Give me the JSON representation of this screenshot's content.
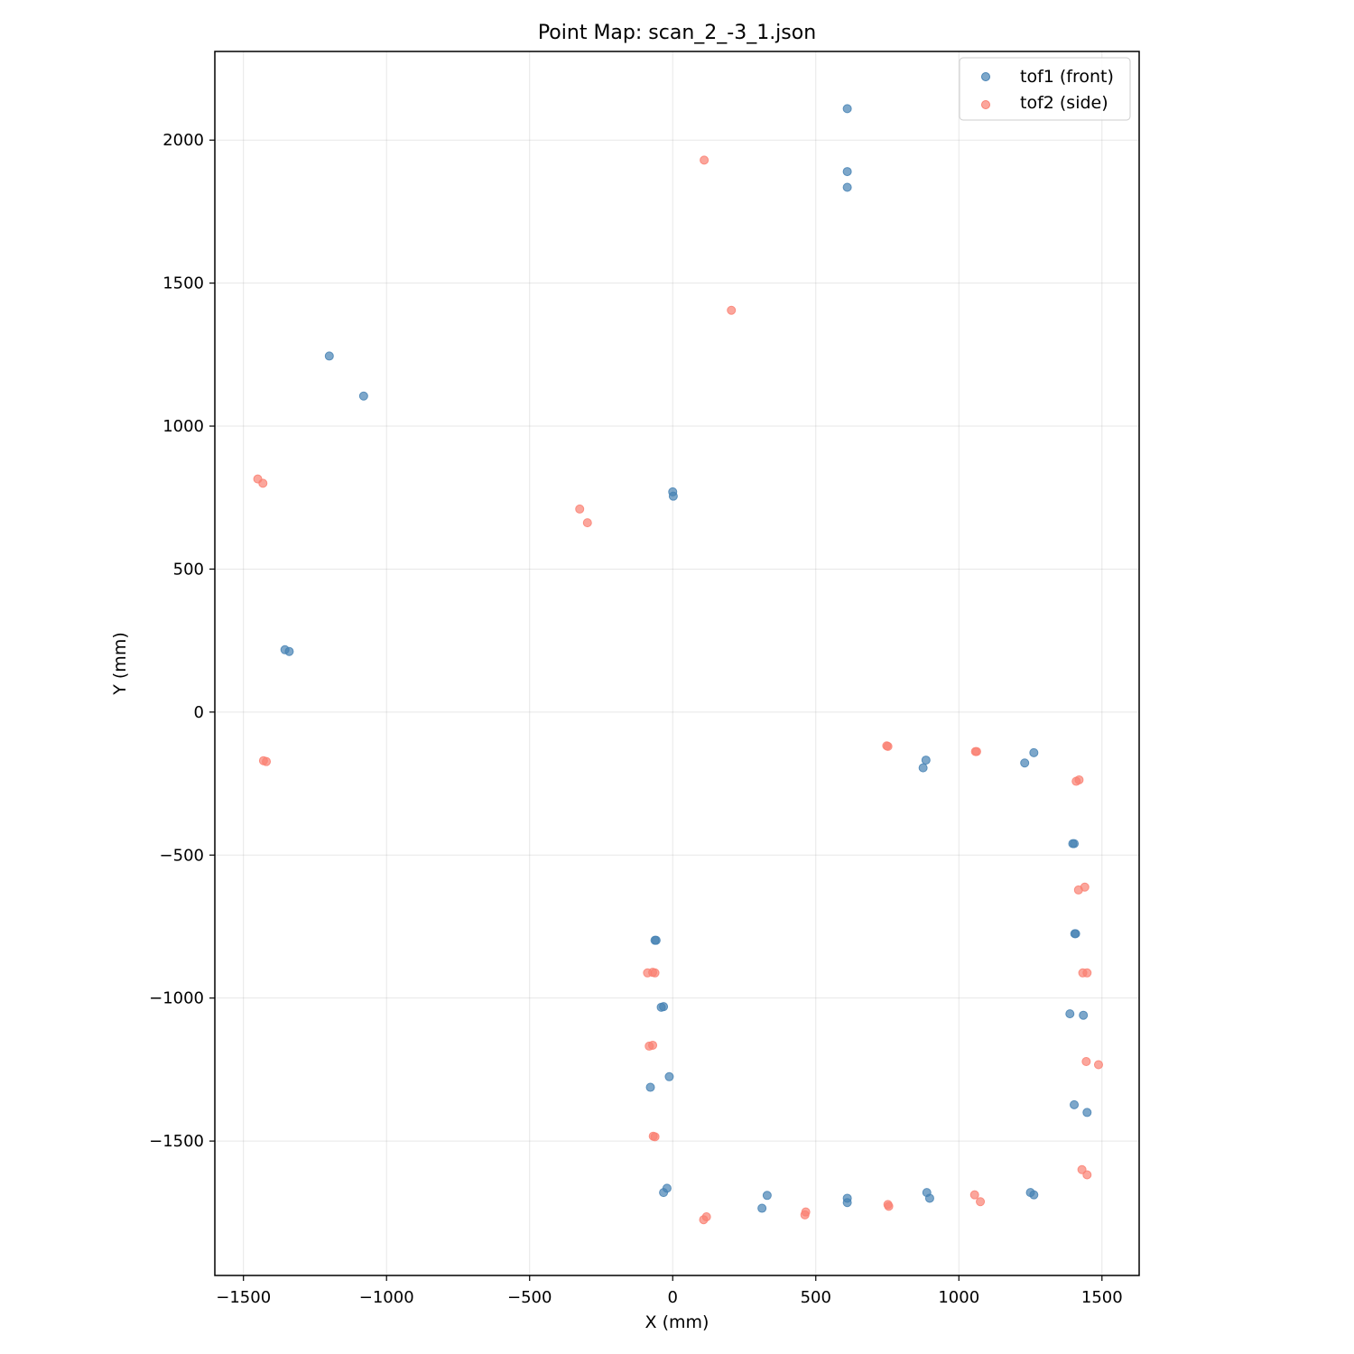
{
  "chart_data": {
    "type": "scatter",
    "title": "Point Map: scan_2_-3_1.json",
    "xlabel": "X (mm)",
    "ylabel": "Y (mm)",
    "xlim": [
      -1600,
      1630
    ],
    "ylim": [
      -1970,
      2310
    ],
    "xticks": [
      -1500,
      -1000,
      -500,
      0,
      500,
      1000,
      1500
    ],
    "yticks": [
      -1500,
      -1000,
      -500,
      0,
      500,
      1000,
      1500,
      2000
    ],
    "xtick_labels": [
      "−1500",
      "−1000",
      "−500",
      "0",
      "500",
      "1000",
      "1500"
    ],
    "ytick_labels": [
      "−1500",
      "−1000",
      "−500",
      "0",
      "500",
      "1000",
      "1500",
      "2000"
    ],
    "grid": true,
    "legend_position": "top-right",
    "series": [
      {
        "name": "tof1 (front)",
        "color": "#4682b4",
        "points": [
          [
            610,
            2110
          ],
          [
            610,
            1890
          ],
          [
            610,
            1835
          ],
          [
            -1200,
            1245
          ],
          [
            -1080,
            1105
          ],
          [
            0,
            770
          ],
          [
            2,
            755
          ],
          [
            -1355,
            218
          ],
          [
            -1340,
            212
          ],
          [
            885,
            -168
          ],
          [
            875,
            -195
          ],
          [
            1230,
            -178
          ],
          [
            1262,
            -142
          ],
          [
            1398,
            -460
          ],
          [
            1403,
            -460
          ],
          [
            1405,
            -775
          ],
          [
            1408,
            -775
          ],
          [
            -62,
            -798
          ],
          [
            -58,
            -798
          ],
          [
            -40,
            -1032
          ],
          [
            -32,
            -1030
          ],
          [
            1388,
            -1055
          ],
          [
            1435,
            -1060
          ],
          [
            -12,
            -1275
          ],
          [
            -78,
            -1312
          ],
          [
            1403,
            -1373
          ],
          [
            1448,
            -1400
          ],
          [
            -20,
            -1665
          ],
          [
            -32,
            -1680
          ],
          [
            330,
            -1690
          ],
          [
            312,
            -1735
          ],
          [
            610,
            -1700
          ],
          [
            610,
            -1715
          ],
          [
            888,
            -1680
          ],
          [
            898,
            -1700
          ],
          [
            1250,
            -1680
          ],
          [
            1262,
            -1688
          ]
        ]
      },
      {
        "name": "tof2 (side)",
        "color": "#fa8072",
        "points": [
          [
            110,
            1930
          ],
          [
            205,
            1405
          ],
          [
            -1450,
            815
          ],
          [
            -1432,
            800
          ],
          [
            -325,
            710
          ],
          [
            -298,
            662
          ],
          [
            -1430,
            -170
          ],
          [
            -1420,
            -173
          ],
          [
            748,
            -118
          ],
          [
            752,
            -120
          ],
          [
            1058,
            -138
          ],
          [
            1062,
            -138
          ],
          [
            1410,
            -242
          ],
          [
            1420,
            -237
          ],
          [
            1440,
            -612
          ],
          [
            1418,
            -622
          ],
          [
            -70,
            -910
          ],
          [
            -88,
            -912
          ],
          [
            -62,
            -912
          ],
          [
            1433,
            -912
          ],
          [
            1448,
            -912
          ],
          [
            -70,
            -1165
          ],
          [
            -82,
            -1168
          ],
          [
            1445,
            -1222
          ],
          [
            1488,
            -1233
          ],
          [
            -68,
            -1483
          ],
          [
            -62,
            -1485
          ],
          [
            1430,
            -1600
          ],
          [
            1448,
            -1618
          ],
          [
            118,
            -1765
          ],
          [
            108,
            -1775
          ],
          [
            465,
            -1748
          ],
          [
            462,
            -1758
          ],
          [
            752,
            -1722
          ],
          [
            755,
            -1728
          ],
          [
            1055,
            -1688
          ],
          [
            1075,
            -1712
          ]
        ]
      }
    ]
  }
}
